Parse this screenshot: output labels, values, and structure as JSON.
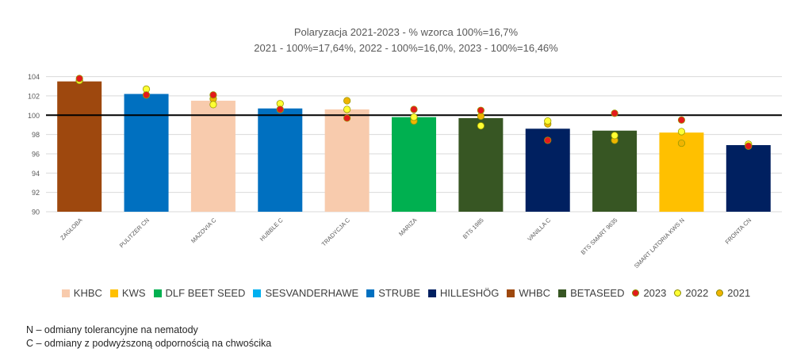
{
  "chart_data": {
    "type": "bar",
    "title": "Polaryzacja 2021-2023 - % wzorca 100%=16,7%",
    "subtitle": "2021 - 100%=17,64%, 2022 - 100%=16,0%, 2023 - 100%=16,46%",
    "categories": [
      "ZAGŁOBA",
      "PULITZER CN",
      "MAZOVIA C",
      "HUBBLE C",
      "TRADYCJA C",
      "MARIZA",
      "BTS 1985",
      "VANILLA C",
      "BTS SMART 9635",
      "SMART LATORIA KWS N",
      "FRONTA CN"
    ],
    "values": [
      103.5,
      102.2,
      101.5,
      100.7,
      100.6,
      99.8,
      99.7,
      98.6,
      98.4,
      98.2,
      96.9
    ],
    "bar_breeders": [
      "WHBC",
      "STRUBE",
      "KHBC",
      "STRUBE",
      "KHBC",
      "DLF BEET SEED",
      "BETASEED",
      "HILLESHÖG",
      "BETASEED",
      "KWS",
      "HILLESHÖG"
    ],
    "series": [
      {
        "name": "2023",
        "values": [
          103.8,
          102.1,
          102.1,
          100.6,
          99.7,
          100.6,
          100.5,
          97.4,
          100.2,
          99.5,
          96.8
        ]
      },
      {
        "name": "2022",
        "values": [
          103.6,
          102.7,
          101.1,
          101.2,
          100.6,
          99.8,
          98.9,
          99.4,
          97.9,
          98.3,
          97.0
        ]
      },
      {
        "name": "2021",
        "values": [
          103.6,
          102.1,
          101.7,
          100.6,
          101.5,
          99.4,
          99.9,
          99.1,
          97.4,
          97.1,
          96.9
        ]
      }
    ],
    "yticks": [
      "90",
      "92",
      "94",
      "96",
      "98",
      "100",
      "102",
      "104"
    ],
    "ylim": [
      90,
      104.5
    ],
    "reference_line": 100,
    "grid": true,
    "legend_position": "bottom",
    "legend": [
      {
        "name": "KHBC",
        "kind": "bar",
        "color": "#f8cbad"
      },
      {
        "name": "KWS",
        "kind": "bar",
        "color": "#ffc000"
      },
      {
        "name": "DLF BEET SEED",
        "kind": "bar",
        "color": "#00b050"
      },
      {
        "name": "SESVANDERHAWE",
        "kind": "bar",
        "color": "#00b0f0"
      },
      {
        "name": "STRUBE",
        "kind": "bar",
        "color": "#0070c0"
      },
      {
        "name": "HILLESHÖG",
        "kind": "bar",
        "color": "#002060"
      },
      {
        "name": "WHBC",
        "kind": "bar",
        "color": "#9e480e"
      },
      {
        "name": "BETASEED",
        "kind": "bar",
        "color": "#375623"
      },
      {
        "name": "2023",
        "kind": "marker",
        "color": "#e31a1c"
      },
      {
        "name": "2022",
        "kind": "marker",
        "color": "#ffff33"
      },
      {
        "name": "2021",
        "kind": "marker",
        "color": "#f0b400"
      }
    ]
  },
  "notes": [
    "N – odmiany tolerancyjne na nematody",
    "C – odmiany z podwyższoną odpornością na chwościka"
  ]
}
